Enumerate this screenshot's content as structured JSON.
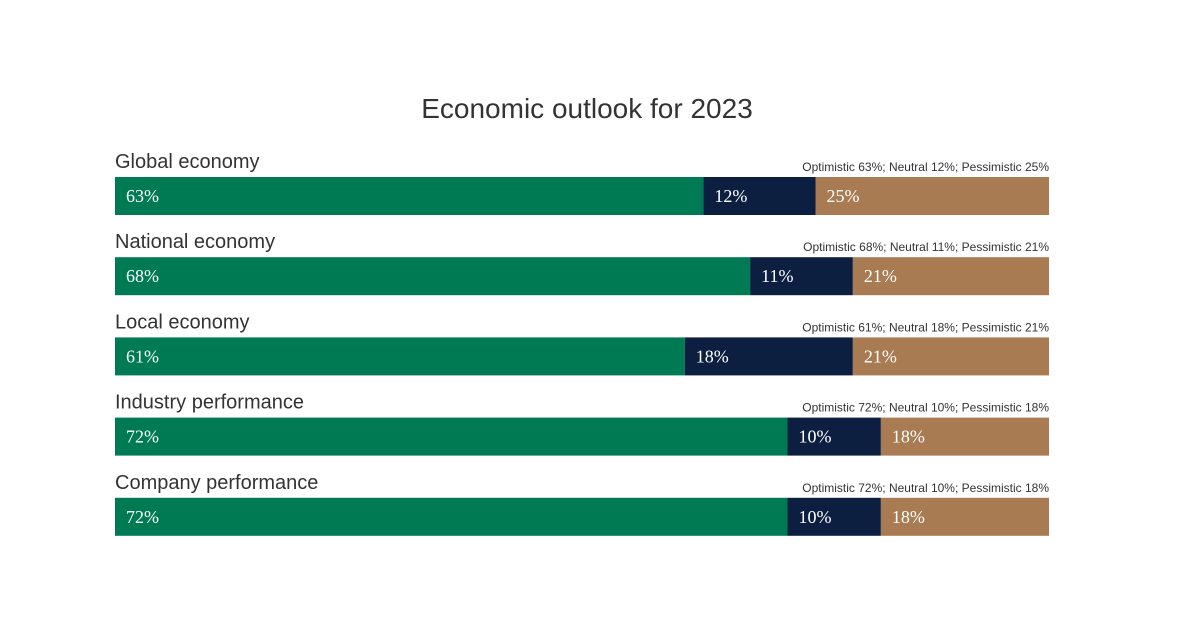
{
  "chart_data": {
    "type": "bar",
    "orientation": "horizontal",
    "stacked": true,
    "title": "Economic outlook for 2023",
    "categories": [
      "Global economy",
      "National economy",
      "Local economy",
      "Industry performance",
      "Company performance"
    ],
    "summaries": [
      "Optimistic 63%; Neutral 12%; Pessimistic 25%",
      "Optimistic 68%; Neutral 11%; Pessimistic 21%",
      "Optimistic 61%; Neutral 18%; Pessimistic 21%",
      "Optimistic 72%; Neutral 10%; Pessimistic 18%",
      "Optimistic 72%; Neutral 10%; Pessimistic 18%"
    ],
    "series": [
      {
        "key": "optimistic",
        "values": [
          63,
          68,
          61,
          72,
          72
        ],
        "color": "#007a53"
      },
      {
        "key": "neutral",
        "values": [
          12,
          11,
          18,
          10,
          10
        ],
        "color": "#0d1f40"
      },
      {
        "key": "pessimistic",
        "values": [
          25,
          21,
          21,
          18,
          18
        ],
        "color": "#a87b52"
      }
    ],
    "value_suffix": "%",
    "xlim": [
      0,
      100
    ],
    "grid": false,
    "legend": "none"
  }
}
